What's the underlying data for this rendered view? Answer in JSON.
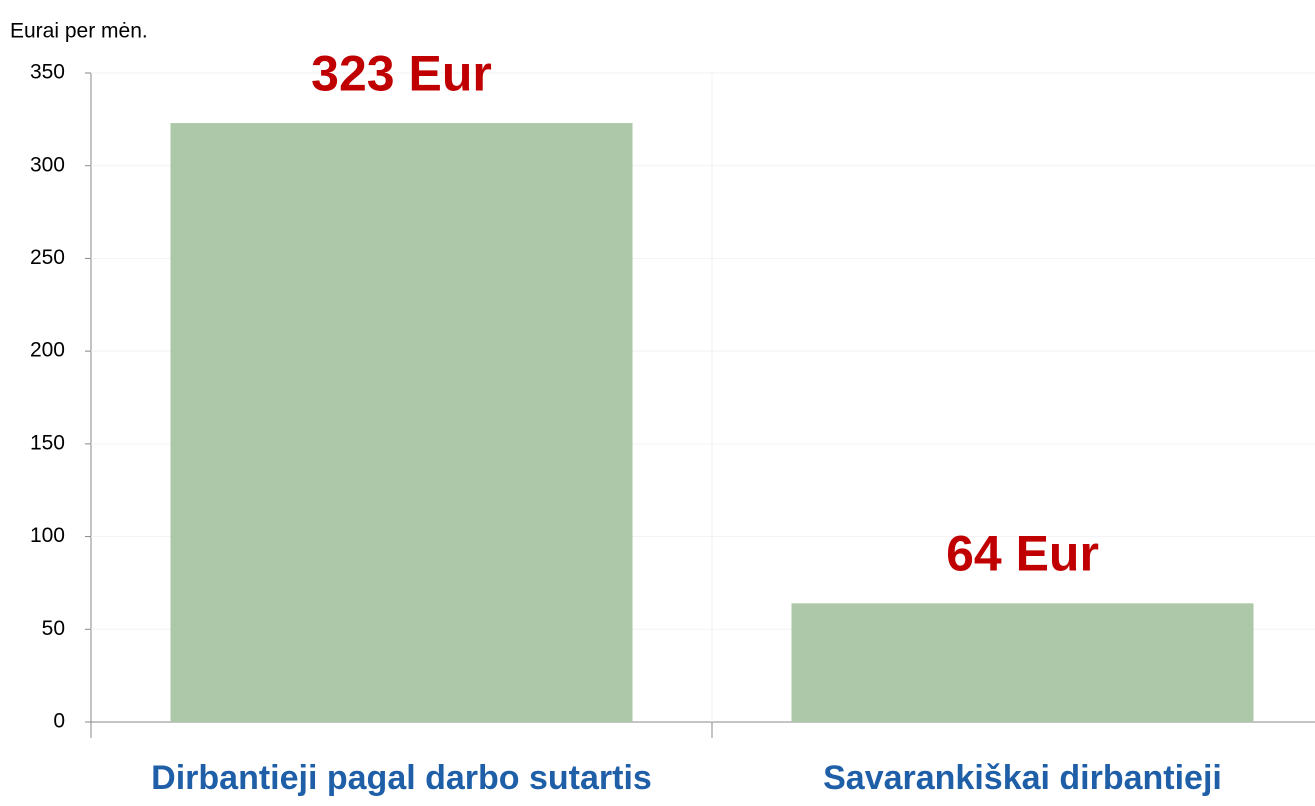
{
  "chart_data": {
    "type": "bar",
    "y_label": "Eurai per mėn.",
    "categories": [
      "Dirbantieji pagal darbo sutartis",
      "Savarankiškai dirbantieji"
    ],
    "values": [
      323,
      64
    ],
    "value_labels": [
      "323 Eur",
      "64 Eur"
    ],
    "color": "#adc8a8",
    "ylim": [
      0,
      350
    ],
    "yticks": [
      0,
      50,
      100,
      150,
      200,
      250,
      300,
      350
    ],
    "grid": true
  }
}
